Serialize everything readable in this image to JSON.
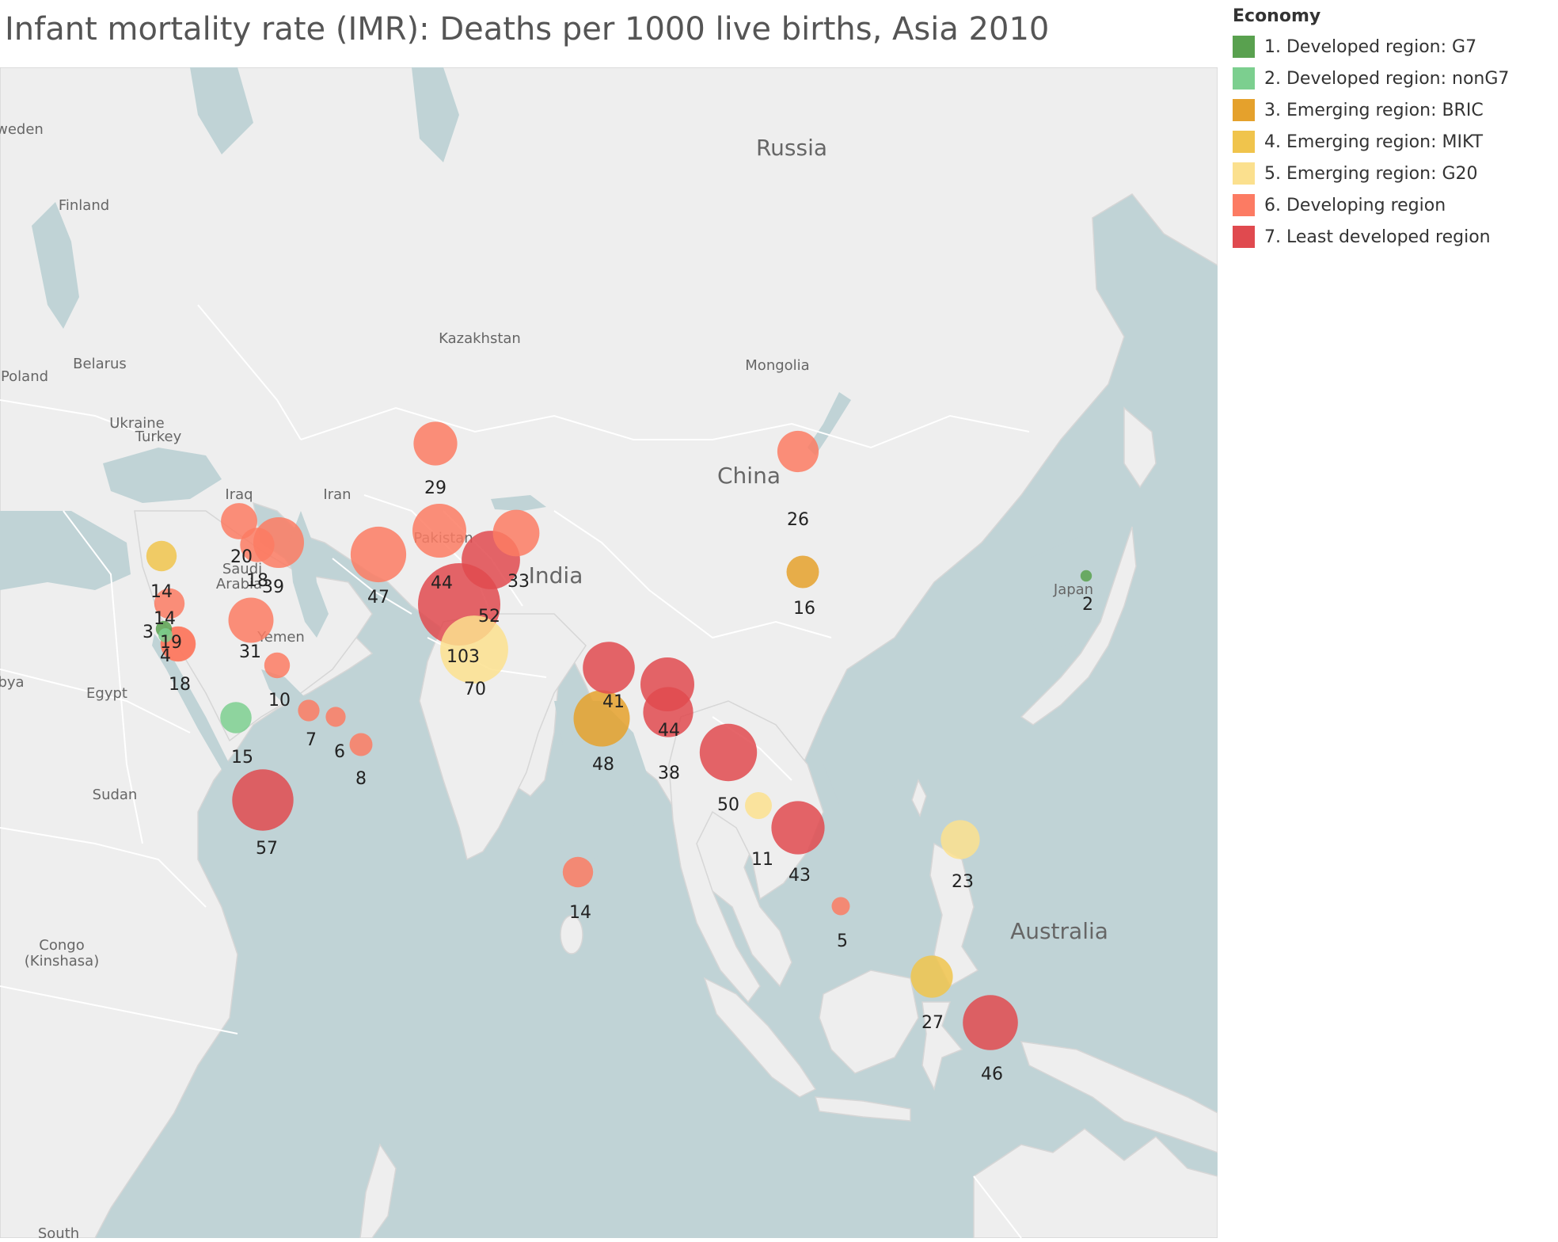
{
  "title": "Infant mortality rate (IMR): Deaths per 1000 live births, Asia 2010",
  "legend": {
    "title": "Economy",
    "items": [
      {
        "label": "1. Developed region: G7",
        "color": "#59a14f"
      },
      {
        "label": "2. Developed region: nonG7",
        "color": "#7ccf8f"
      },
      {
        "label": "3. Emerging region: BRIC",
        "color": "#e5a12c"
      },
      {
        "label": "4. Emerging region: MIKT",
        "color": "#f0c44c"
      },
      {
        "label": "5. Emerging region: G20",
        "color": "#fbe08e"
      },
      {
        "label": "6. Developing region",
        "color": "#fc7b63"
      },
      {
        "label": "7. Least developed region",
        "color": "#e04a4f"
      }
    ]
  },
  "map": {
    "colors": {
      "water": "#c0d3d6",
      "land": "#eeeeee",
      "border": "#ffffff",
      "label": "#666666"
    },
    "place_labels": [
      {
        "text": "Russia",
        "size": "large"
      },
      {
        "text": "China",
        "size": "large"
      },
      {
        "text": "India",
        "size": "large"
      },
      {
        "text": "Australia",
        "size": "large"
      },
      {
        "text": "Kazakhstan",
        "size": "small"
      },
      {
        "text": "Mongolia",
        "size": "small"
      },
      {
        "text": "Iran",
        "size": "small"
      },
      {
        "text": "Iraq",
        "size": "small"
      },
      {
        "text": "Pakistan",
        "size": "small"
      },
      {
        "text": "Turkey",
        "size": "small"
      },
      {
        "text": "Saudi",
        "size": "small"
      },
      {
        "text": "Arabia",
        "size": "small"
      },
      {
        "text": "Yemen",
        "size": "small"
      },
      {
        "text": "Japan",
        "size": "small"
      },
      {
        "text": "weden",
        "size": "small"
      },
      {
        "text": "Finland",
        "size": "small"
      },
      {
        "text": "Belarus",
        "size": "small"
      },
      {
        "text": "Poland",
        "size": "small"
      },
      {
        "text": "Ukraine",
        "size": "small"
      },
      {
        "text": "Egypt",
        "size": "small"
      },
      {
        "text": "bya",
        "size": "small"
      },
      {
        "text": "Sudan",
        "size": "small"
      },
      {
        "text": "Congo",
        "size": "small"
      },
      {
        "text": "(Kinshasa)",
        "size": "small"
      },
      {
        "text": "South",
        "size": "small"
      }
    ]
  },
  "chart_data": {
    "type": "bubble-map",
    "title": "Infant mortality rate (IMR): Deaths per 1000 live births, Asia 2010",
    "size_encodes": "IMR",
    "color_encodes": "Economy",
    "points": [
      {
        "value": 29,
        "economy": 6
      },
      {
        "value": 26,
        "economy": 6
      },
      {
        "value": 20,
        "economy": 6
      },
      {
        "value": 18,
        "economy": 6
      },
      {
        "value": 39,
        "economy": 6
      },
      {
        "value": 47,
        "economy": 6
      },
      {
        "value": 44,
        "economy": 6
      },
      {
        "value": 33,
        "economy": 6
      },
      {
        "value": 52,
        "economy": 7
      },
      {
        "value": 103,
        "economy": 7
      },
      {
        "value": 70,
        "economy": 5
      },
      {
        "value": 16,
        "economy": 3
      },
      {
        "value": 2,
        "economy": 1
      },
      {
        "value": 14,
        "economy": 4
      },
      {
        "value": 14,
        "economy": 6
      },
      {
        "value": 3,
        "economy": 2
      },
      {
        "value": 4,
        "economy": 1
      },
      {
        "value": 19,
        "economy": 6
      },
      {
        "value": 18,
        "economy": 6
      },
      {
        "value": 31,
        "economy": 6
      },
      {
        "value": 10,
        "economy": 6
      },
      {
        "value": 7,
        "economy": 6
      },
      {
        "value": 6,
        "economy": 6
      },
      {
        "value": 8,
        "economy": 6
      },
      {
        "value": 15,
        "economy": 2
      },
      {
        "value": 57,
        "economy": 7
      },
      {
        "value": 41,
        "economy": 7
      },
      {
        "value": 44,
        "economy": 7
      },
      {
        "value": 48,
        "economy": 3
      },
      {
        "value": 38,
        "economy": 7
      },
      {
        "value": 50,
        "economy": 7
      },
      {
        "value": 11,
        "economy": 5
      },
      {
        "value": 43,
        "economy": 7
      },
      {
        "value": 23,
        "economy": 5
      },
      {
        "value": 14,
        "economy": 6
      },
      {
        "value": 5,
        "economy": 6
      },
      {
        "value": 27,
        "economy": 4
      },
      {
        "value": 46,
        "economy": 7
      }
    ]
  }
}
